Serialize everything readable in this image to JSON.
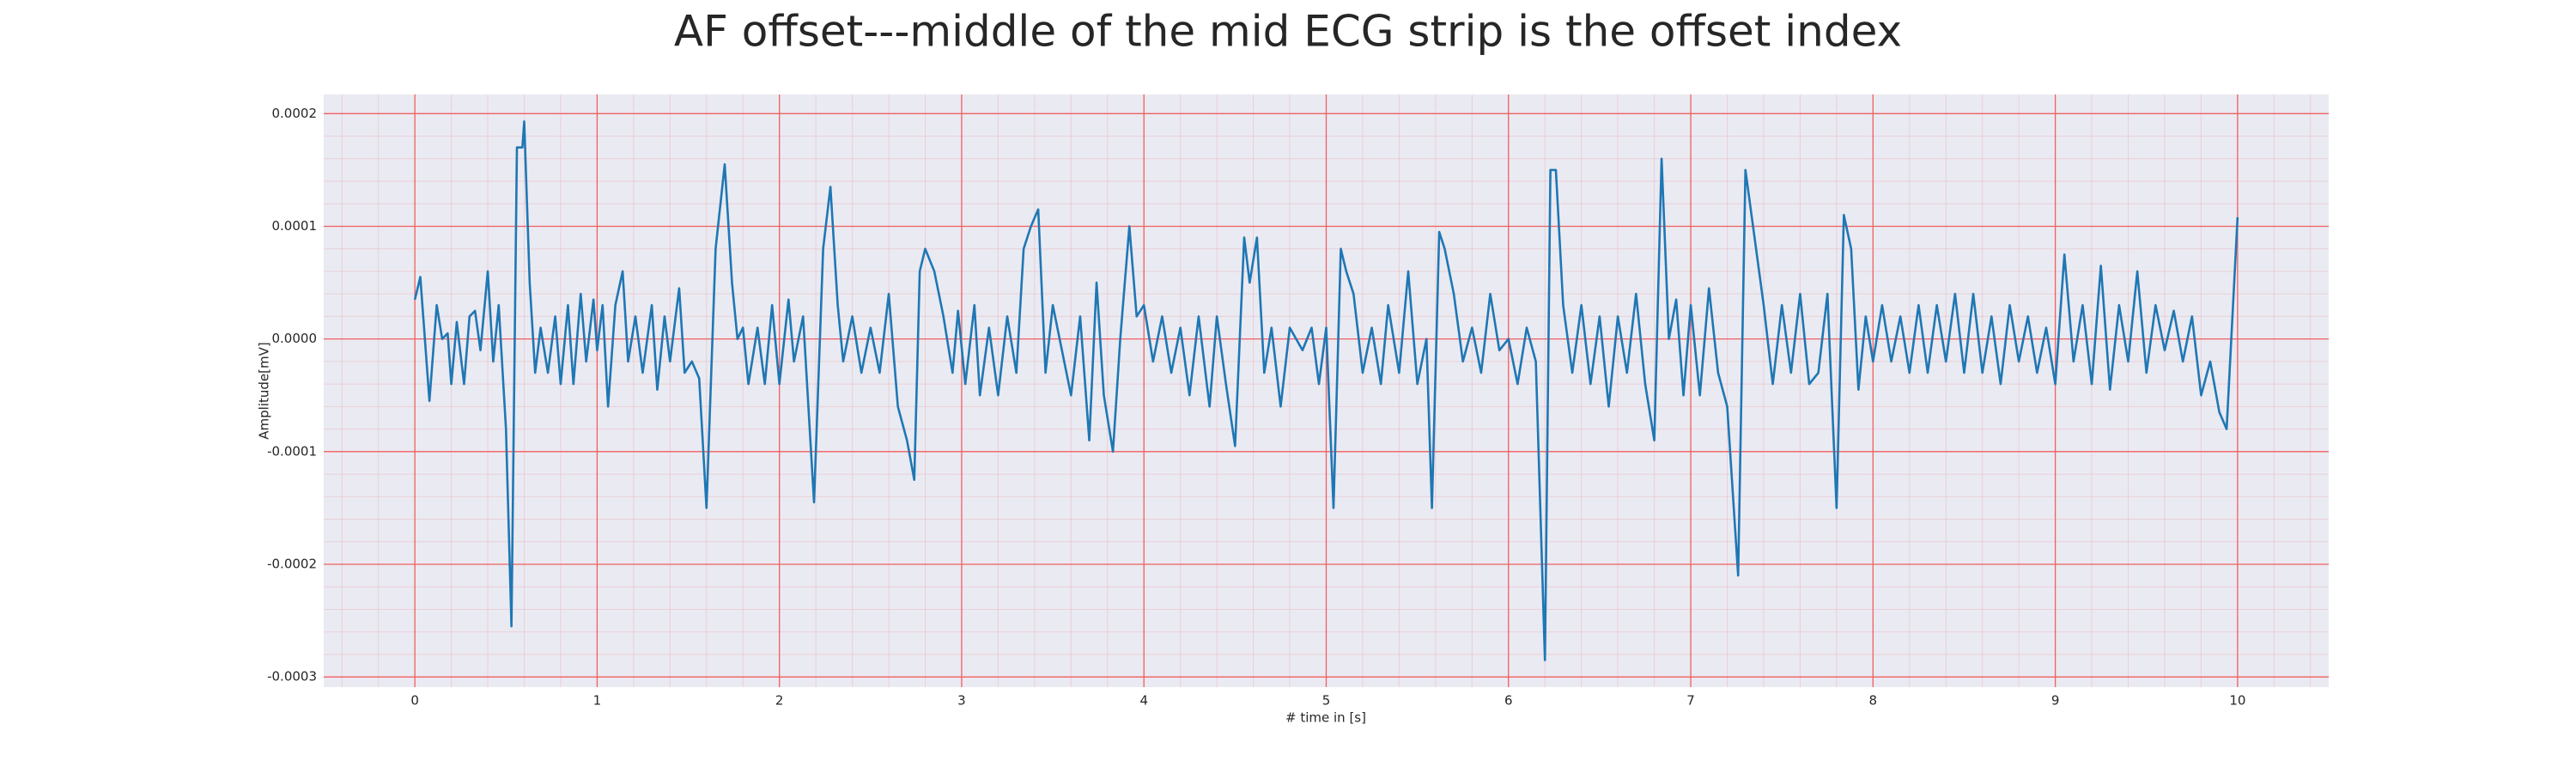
{
  "chart_data": {
    "type": "line",
    "title": "AF offset---middle of the mid ECG strip is the offset index",
    "xlabel": "# time in [s]",
    "ylabel": "Amplitude[mV]",
    "xlim": [
      -0.5,
      10.5
    ],
    "ylim": [
      -0.000309,
      0.000217
    ],
    "xticks": [
      0,
      1,
      2,
      3,
      4,
      5,
      6,
      7,
      8,
      9,
      10
    ],
    "yticks": [
      0.0002,
      0.0001,
      {
        "value": 0,
        "label": "0.0000"
      },
      -0.0001,
      -0.0002,
      -0.0003
    ],
    "grid": true,
    "minor_grid": true,
    "grid_color": "#f06060",
    "background": "#eaeaf2",
    "color": "#1f77b4",
    "x": [
      0,
      0.03,
      0.08,
      0.12,
      0.15,
      0.18,
      0.2,
      0.23,
      0.27,
      0.3,
      0.33,
      0.36,
      0.4,
      0.43,
      0.46,
      0.5,
      0.53,
      0.56,
      0.59,
      0.6,
      0.63,
      0.66,
      0.69,
      0.73,
      0.77,
      0.8,
      0.84,
      0.87,
      0.91,
      0.94,
      0.98,
      1.0,
      1.03,
      1.06,
      1.1,
      1.14,
      1.17,
      1.21,
      1.25,
      1.3,
      1.33,
      1.37,
      1.4,
      1.45,
      1.48,
      1.52,
      1.56,
      1.6,
      1.65,
      1.7,
      1.74,
      1.77,
      1.8,
      1.83,
      1.88,
      1.92,
      1.96,
      2.0,
      2.05,
      2.08,
      2.13,
      2.19,
      2.24,
      2.28,
      2.32,
      2.35,
      2.4,
      2.45,
      2.5,
      2.55,
      2.6,
      2.65,
      2.7,
      2.74,
      2.77,
      2.8,
      2.85,
      2.9,
      2.95,
      2.98,
      3.02,
      3.07,
      3.1,
      3.15,
      3.2,
      3.25,
      3.3,
      3.34,
      3.38,
      3.42,
      3.46,
      3.5,
      3.55,
      3.6,
      3.65,
      3.7,
      3.74,
      3.78,
      3.83,
      3.87,
      3.92,
      3.96,
      4.0,
      4.05,
      4.1,
      4.15,
      4.2,
      4.25,
      4.3,
      4.36,
      4.4,
      4.45,
      4.5,
      4.55,
      4.58,
      4.62,
      4.66,
      4.7,
      4.75,
      4.8,
      4.87,
      4.92,
      4.96,
      5.0,
      5.04,
      5.08,
      5.11,
      5.15,
      5.2,
      5.25,
      5.3,
      5.34,
      5.4,
      5.45,
      5.5,
      5.55,
      5.58,
      5.62,
      5.65,
      5.7,
      5.75,
      5.8,
      5.85,
      5.9,
      5.95,
      6.0,
      6.05,
      6.1,
      6.15,
      6.2,
      6.23,
      6.26,
      6.3,
      6.35,
      6.4,
      6.45,
      6.5,
      6.55,
      6.6,
      6.65,
      6.7,
      6.75,
      6.8,
      6.84,
      6.88,
      6.92,
      6.96,
      7.0,
      7.05,
      7.1,
      7.15,
      7.2,
      7.26,
      7.3,
      7.35,
      7.4,
      7.45,
      7.5,
      7.55,
      7.6,
      7.65,
      7.7,
      7.75,
      7.8,
      7.84,
      7.88,
      7.92,
      7.96,
      8.0,
      8.05,
      8.1,
      8.15,
      8.2,
      8.25,
      8.3,
      8.35,
      8.4,
      8.45,
      8.5,
      8.55,
      8.6,
      8.65,
      8.7,
      8.75,
      8.8,
      8.85,
      8.9,
      8.95,
      9.0,
      9.05,
      9.1,
      9.15,
      9.2,
      9.25,
      9.3,
      9.35,
      9.4,
      9.45,
      9.5,
      9.55,
      9.6,
      9.65,
      9.7,
      9.75,
      9.8,
      9.85,
      9.9,
      9.94,
      10.0
    ],
    "values": [
      3.5e-05,
      5.5e-05,
      -5.5e-05,
      3e-05,
      0,
      5e-06,
      -4e-05,
      1.5e-05,
      -4e-05,
      2e-05,
      2.5e-05,
      -1e-05,
      6e-05,
      -2e-05,
      3e-05,
      -8e-05,
      -0.000255,
      0.00017,
      0.00017,
      0.000193,
      5e-05,
      -3e-05,
      1e-05,
      -3e-05,
      2e-05,
      -4e-05,
      3e-05,
      -4e-05,
      4e-05,
      -2e-05,
      3.5e-05,
      -1e-05,
      3e-05,
      -6e-05,
      3e-05,
      6e-05,
      -2e-05,
      2e-05,
      -3e-05,
      3e-05,
      -4.5e-05,
      2e-05,
      -2e-05,
      4.5e-05,
      -3e-05,
      -2e-05,
      -3.5e-05,
      -0.00015,
      8e-05,
      0.000155,
      5e-05,
      0,
      1e-05,
      -4e-05,
      1e-05,
      -4e-05,
      3e-05,
      -4e-05,
      3.5e-05,
      -2e-05,
      2e-05,
      -0.000145,
      8e-05,
      0.000135,
      3e-05,
      -2e-05,
      2e-05,
      -3e-05,
      1e-05,
      -3e-05,
      4e-05,
      -6e-05,
      -9e-05,
      -0.000125,
      6e-05,
      8e-05,
      6e-05,
      2e-05,
      -3e-05,
      2.5e-05,
      -4e-05,
      3e-05,
      -5e-05,
      1e-05,
      -5e-05,
      2e-05,
      -3e-05,
      8e-05,
      0.0001,
      0.000115,
      -3e-05,
      3e-05,
      -1e-05,
      -5e-05,
      2e-05,
      -9e-05,
      5e-05,
      -5e-05,
      -0.0001,
      0,
      0.0001,
      2e-05,
      3e-05,
      -2e-05,
      2e-05,
      -3e-05,
      1e-05,
      -5e-05,
      2e-05,
      -6e-05,
      2e-05,
      -4e-05,
      -9.5e-05,
      9e-05,
      5e-05,
      9e-05,
      -3e-05,
      1e-05,
      -6e-05,
      1e-05,
      -1e-05,
      1e-05,
      -4e-05,
      1e-05,
      -0.00015,
      8e-05,
      6e-05,
      4e-05,
      -3e-05,
      1e-05,
      -4e-05,
      3e-05,
      -3e-05,
      6e-05,
      -4e-05,
      0,
      -0.00015,
      9.5e-05,
      8e-05,
      4e-05,
      -2e-05,
      1e-05,
      -3e-05,
      4e-05,
      -1e-05,
      0,
      -4e-05,
      1e-05,
      -2e-05,
      -0.000285,
      0.00015,
      0.00015,
      3e-05,
      -3e-05,
      3e-05,
      -4e-05,
      2e-05,
      -6e-05,
      2e-05,
      -3e-05,
      4e-05,
      -4e-05,
      -9e-05,
      0.00016,
      0,
      3.5e-05,
      -5e-05,
      3e-05,
      -5e-05,
      4.5e-05,
      -3e-05,
      -6e-05,
      -0.00021,
      0.00015,
      9e-05,
      3e-05,
      -4e-05,
      3e-05,
      -3e-05,
      4e-05,
      -4e-05,
      -3e-05,
      4e-05,
      -0.00015,
      0.00011,
      8e-05,
      -4.5e-05,
      2e-05,
      -2e-05,
      3e-05,
      -2e-05,
      2e-05,
      -3e-05,
      3e-05,
      -3e-05,
      3e-05,
      -2e-05,
      4e-05,
      -3e-05,
      4e-05,
      -3e-05,
      2e-05,
      -4e-05,
      3e-05,
      -2e-05,
      2e-05,
      -3e-05,
      1e-05,
      -4e-05,
      7.5e-05,
      -2e-05,
      3e-05,
      -4e-05,
      6.5e-05,
      -4.5e-05,
      3e-05,
      -2e-05,
      6e-05,
      -3e-05,
      3e-05,
      -1e-05,
      2.5e-05,
      -2e-05,
      2e-05,
      -5e-05,
      -2e-05,
      -6.5e-05,
      -8e-05,
      0.000108
    ]
  }
}
